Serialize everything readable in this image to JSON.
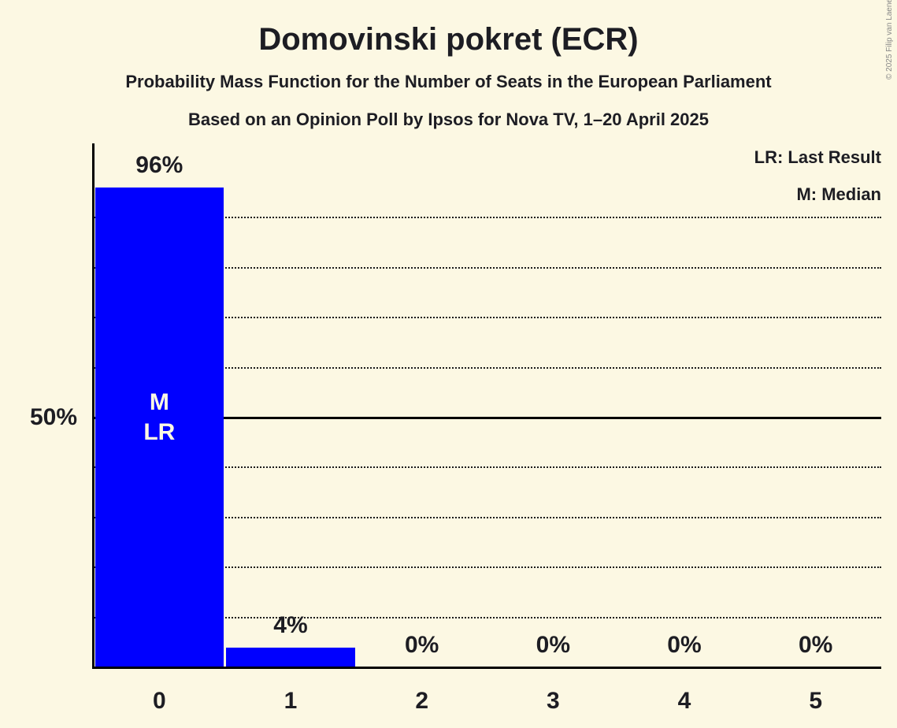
{
  "title": "Domovinski pokret (ECR)",
  "subtitle1": "Probability Mass Function for the Number of Seats in the European Parliament",
  "subtitle2": "Based on an Opinion Poll by Ipsos for Nova TV, 1–20 April 2025",
  "copyright": "© 2025 Filip van Laenen",
  "legend": {
    "lr": "LR: Last Result",
    "m": "M: Median",
    "position": "top-right"
  },
  "y_axis_label": "50%",
  "colors": {
    "background": "#FCF8E3",
    "bar": "#0000FF",
    "text": "#1D1D23",
    "grid": "#1B1B1B",
    "axis": "#000000",
    "bar_annotation_text": "#FCF8E3",
    "copyright_text": "#888888"
  },
  "chart_data": {
    "type": "bar",
    "title": "Domovinski pokret (ECR)",
    "categories": [
      "0",
      "1",
      "2",
      "3",
      "4",
      "5"
    ],
    "values": [
      96,
      4,
      0,
      0,
      0,
      0
    ],
    "value_labels": [
      "96%",
      "4%",
      "0%",
      "0%",
      "0%",
      "0%"
    ],
    "ylim": [
      0,
      100
    ],
    "y_gridlines_dotted": [
      10,
      20,
      30,
      40,
      60,
      70,
      80,
      90
    ],
    "y_gridline_solid": 50,
    "grid": "dotted horizontal, solid at 50%",
    "legend_position": "top-right",
    "annotations": [
      {
        "category_index": 0,
        "lines": [
          "M",
          "LR"
        ]
      }
    ]
  }
}
